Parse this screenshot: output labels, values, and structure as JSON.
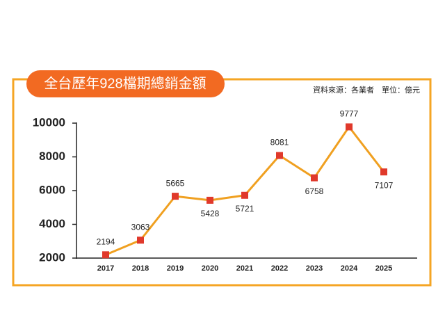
{
  "chart_data": {
    "type": "line",
    "title": "全台歷年928檔期總銷金額",
    "subtitle": "資料來源：各業者　單位：億元",
    "categories": [
      "2017",
      "2018",
      "2019",
      "2020",
      "2021",
      "2022",
      "2023",
      "2024",
      "2025"
    ],
    "values": [
      2194,
      3063,
      5665,
      5428,
      5721,
      8081,
      6758,
      9777,
      7107
    ],
    "color": "#f0a020",
    "marker_color": "#e0392b",
    "ylim": [
      2000,
      10000
    ],
    "yticks": [
      2000,
      4000,
      6000,
      8000,
      10000
    ]
  }
}
